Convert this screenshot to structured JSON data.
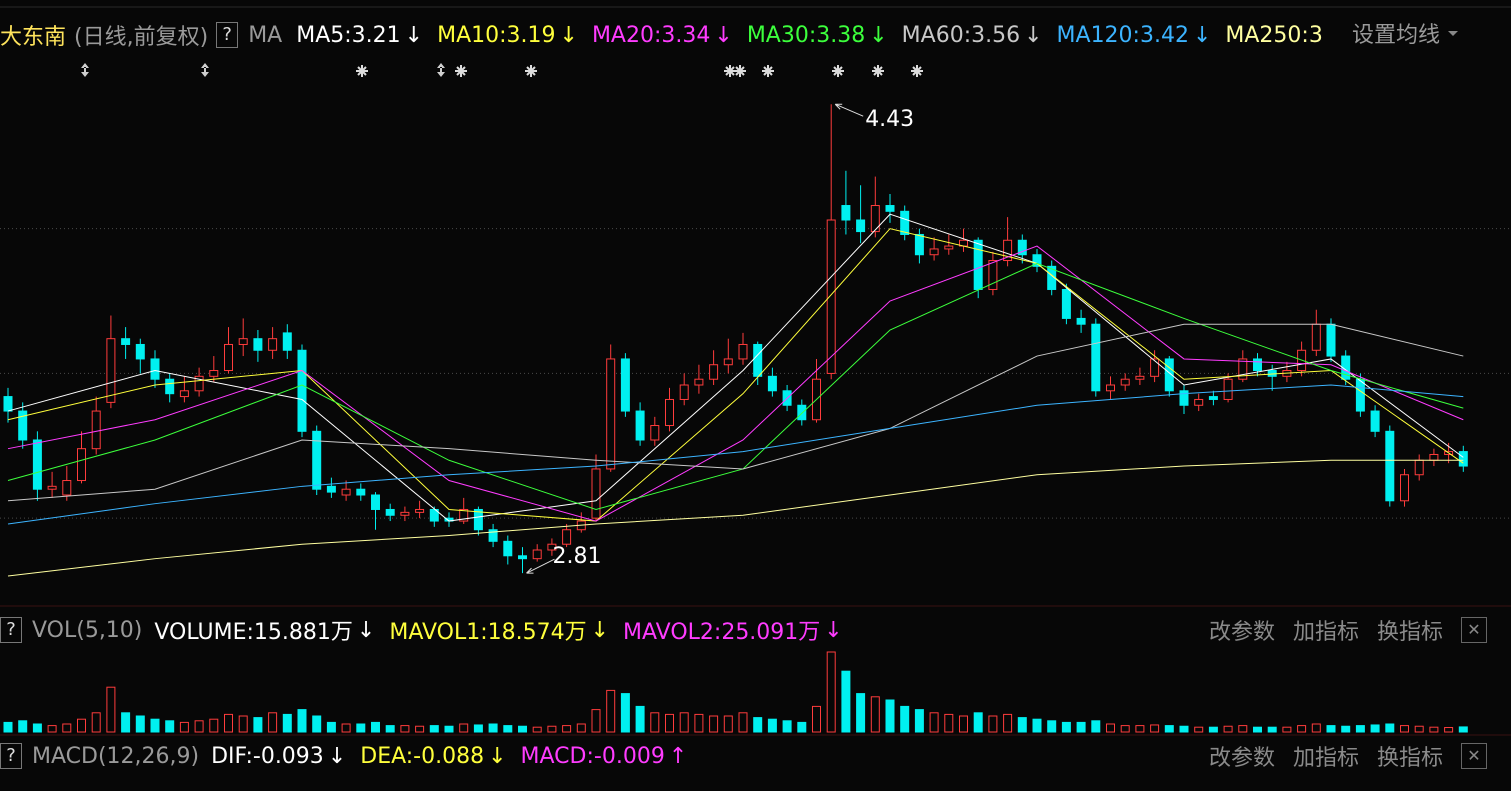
{
  "chart_data": {
    "type": "candlestick",
    "title": "大东南",
    "subtitle": "(日线,前复权)",
    "help": "?",
    "indicator": "MA",
    "settings": "设置均线",
    "ylim": [
      2.7,
      4.6
    ],
    "grid_lines": [
      3,
      3.5,
      4
    ],
    "up_color": "#ff3c3c",
    "down_color": "#00f0f0",
    "ohlc": [
      [
        3.42,
        3.45,
        3.33,
        3.37
      ],
      [
        3.37,
        3.4,
        3.24,
        3.27
      ],
      [
        3.27,
        3.3,
        3.06,
        3.1
      ],
      [
        3.1,
        3.16,
        3.07,
        3.11
      ],
      [
        3.08,
        3.18,
        3.06,
        3.13
      ],
      [
        3.13,
        3.3,
        3.12,
        3.24
      ],
      [
        3.24,
        3.42,
        3.22,
        3.37
      ],
      [
        3.4,
        3.7,
        3.38,
        3.62
      ],
      [
        3.62,
        3.66,
        3.55,
        3.6
      ],
      [
        3.6,
        3.62,
        3.5,
        3.55
      ],
      [
        3.55,
        3.58,
        3.45,
        3.48
      ],
      [
        3.48,
        3.5,
        3.4,
        3.43
      ],
      [
        3.42,
        3.49,
        3.4,
        3.44
      ],
      [
        3.44,
        3.52,
        3.42,
        3.49
      ],
      [
        3.49,
        3.56,
        3.47,
        3.51
      ],
      [
        3.51,
        3.66,
        3.5,
        3.6
      ],
      [
        3.6,
        3.69,
        3.56,
        3.62
      ],
      [
        3.62,
        3.65,
        3.54,
        3.58
      ],
      [
        3.58,
        3.66,
        3.55,
        3.62
      ],
      [
        3.64,
        3.67,
        3.55,
        3.58
      ],
      [
        3.58,
        3.6,
        3.28,
        3.3
      ],
      [
        3.3,
        3.32,
        3.08,
        3.1
      ],
      [
        3.11,
        3.14,
        3.07,
        3.09
      ],
      [
        3.08,
        3.13,
        3.06,
        3.1
      ],
      [
        3.1,
        3.12,
        3.06,
        3.08
      ],
      [
        3.08,
        3.09,
        2.96,
        3.03
      ],
      [
        3.03,
        3.05,
        2.99,
        3.01
      ],
      [
        3.01,
        3.04,
        2.99,
        3.02
      ],
      [
        3.02,
        3.06,
        3.0,
        3.03
      ],
      [
        3.03,
        3.04,
        2.97,
        2.99
      ],
      [
        3.0,
        3.02,
        2.97,
        2.99
      ],
      [
        2.99,
        3.07,
        2.98,
        3.03
      ],
      [
        3.03,
        3.04,
        2.94,
        2.96
      ],
      [
        2.96,
        2.98,
        2.9,
        2.92
      ],
      [
        2.92,
        2.94,
        2.84,
        2.87
      ],
      [
        2.87,
        2.9,
        2.81,
        2.86
      ],
      [
        2.86,
        2.91,
        2.85,
        2.89
      ],
      [
        2.89,
        2.93,
        2.87,
        2.91
      ],
      [
        2.91,
        2.98,
        2.9,
        2.96
      ],
      [
        2.96,
        3.02,
        2.95,
        2.99
      ],
      [
        3.0,
        3.22,
        2.99,
        3.17
      ],
      [
        3.17,
        3.6,
        3.16,
        3.55
      ],
      [
        3.55,
        3.57,
        3.35,
        3.37
      ],
      [
        3.37,
        3.4,
        3.25,
        3.27
      ],
      [
        3.27,
        3.35,
        3.25,
        3.32
      ],
      [
        3.32,
        3.45,
        3.3,
        3.41
      ],
      [
        3.41,
        3.5,
        3.39,
        3.46
      ],
      [
        3.46,
        3.53,
        3.43,
        3.48
      ],
      [
        3.48,
        3.58,
        3.46,
        3.53
      ],
      [
        3.53,
        3.62,
        3.5,
        3.55
      ],
      [
        3.55,
        3.64,
        3.53,
        3.6
      ],
      [
        3.6,
        3.61,
        3.46,
        3.49
      ],
      [
        3.49,
        3.52,
        3.42,
        3.44
      ],
      [
        3.44,
        3.46,
        3.37,
        3.39
      ],
      [
        3.39,
        3.41,
        3.32,
        3.34
      ],
      [
        3.34,
        3.55,
        3.33,
        3.48
      ],
      [
        3.5,
        4.43,
        3.48,
        4.03
      ],
      [
        4.08,
        4.2,
        3.98,
        4.03
      ],
      [
        4.03,
        4.15,
        3.95,
        3.99
      ],
      [
        3.99,
        4.18,
        3.97,
        4.08
      ],
      [
        4.08,
        4.12,
        4.02,
        4.06
      ],
      [
        4.06,
        4.08,
        3.96,
        3.98
      ],
      [
        3.98,
        4.0,
        3.88,
        3.91
      ],
      [
        3.91,
        3.97,
        3.89,
        3.93
      ],
      [
        3.93,
        3.98,
        3.91,
        3.94
      ],
      [
        3.94,
        4.0,
        3.92,
        3.96
      ],
      [
        3.96,
        3.97,
        3.76,
        3.79
      ],
      [
        3.79,
        3.92,
        3.77,
        3.89
      ],
      [
        3.89,
        4.04,
        3.87,
        3.96
      ],
      [
        3.96,
        3.98,
        3.88,
        3.91
      ],
      [
        3.91,
        3.93,
        3.85,
        3.87
      ],
      [
        3.87,
        3.89,
        3.77,
        3.79
      ],
      [
        3.79,
        3.81,
        3.67,
        3.69
      ],
      [
        3.69,
        3.72,
        3.64,
        3.67
      ],
      [
        3.67,
        3.69,
        3.42,
        3.44
      ],
      [
        3.44,
        3.49,
        3.41,
        3.46
      ],
      [
        3.46,
        3.5,
        3.44,
        3.48
      ],
      [
        3.48,
        3.52,
        3.46,
        3.49
      ],
      [
        3.49,
        3.58,
        3.47,
        3.55
      ],
      [
        3.55,
        3.56,
        3.42,
        3.44
      ],
      [
        3.44,
        3.46,
        3.36,
        3.39
      ],
      [
        3.39,
        3.43,
        3.37,
        3.41
      ],
      [
        3.42,
        3.44,
        3.39,
        3.41
      ],
      [
        3.41,
        3.5,
        3.4,
        3.48
      ],
      [
        3.48,
        3.58,
        3.47,
        3.55
      ],
      [
        3.55,
        3.57,
        3.49,
        3.51
      ],
      [
        3.51,
        3.53,
        3.44,
        3.49
      ],
      [
        3.49,
        3.54,
        3.47,
        3.51
      ],
      [
        3.51,
        3.61,
        3.49,
        3.58
      ],
      [
        3.58,
        3.72,
        3.56,
        3.67
      ],
      [
        3.67,
        3.69,
        3.54,
        3.56
      ],
      [
        3.56,
        3.58,
        3.46,
        3.48
      ],
      [
        3.48,
        3.5,
        3.35,
        3.37
      ],
      [
        3.37,
        3.39,
        3.28,
        3.3
      ],
      [
        3.3,
        3.32,
        3.04,
        3.06
      ],
      [
        3.06,
        3.17,
        3.04,
        3.15
      ],
      [
        3.15,
        3.22,
        3.13,
        3.2
      ],
      [
        3.2,
        3.24,
        3.18,
        3.22
      ],
      [
        3.22,
        3.26,
        3.19,
        3.23
      ],
      [
        3.23,
        3.25,
        3.16,
        3.18
      ]
    ],
    "high_label": {
      "value": 4.43,
      "label": "4.43"
    },
    "low_label": {
      "value": 2.81,
      "label": "2.81"
    },
    "series": [
      {
        "name": "MA5:3.21",
        "arrow": "↓",
        "color": "#ffffff",
        "x": [
          0,
          10,
          20,
          30,
          40,
          50,
          60,
          70,
          80,
          90,
          99
        ],
        "values": [
          3.37,
          3.51,
          3.41,
          2.99,
          3.06,
          3.51,
          4.05,
          3.88,
          3.46,
          3.55,
          3.21
        ]
      },
      {
        "name": "MA10:3.19",
        "arrow": "↓",
        "color": "#ffff3c",
        "x": [
          0,
          10,
          20,
          30,
          40,
          50,
          60,
          70,
          80,
          90,
          99
        ],
        "values": [
          3.34,
          3.46,
          3.51,
          3.03,
          2.99,
          3.43,
          4.0,
          3.88,
          3.48,
          3.51,
          3.19
        ]
      },
      {
        "name": "MA20:3.34",
        "arrow": "↓",
        "color": "#ff3cff",
        "x": [
          0,
          10,
          20,
          30,
          40,
          50,
          60,
          70,
          80,
          90,
          99
        ],
        "values": [
          3.24,
          3.34,
          3.51,
          3.13,
          2.99,
          3.27,
          3.75,
          3.94,
          3.55,
          3.53,
          3.34
        ]
      },
      {
        "name": "MA30:3.38",
        "arrow": "↓",
        "color": "#3cff3c",
        "x": [
          0,
          10,
          20,
          30,
          40,
          50,
          60,
          70,
          80,
          90,
          99
        ],
        "values": [
          3.13,
          3.27,
          3.46,
          3.2,
          3.03,
          3.17,
          3.65,
          3.88,
          3.69,
          3.51,
          3.38
        ]
      },
      {
        "name": "MA60:3.56",
        "arrow": "↓",
        "color": "#c8c8c8",
        "x": [
          0,
          10,
          20,
          30,
          40,
          50,
          60,
          70,
          80,
          90,
          99
        ],
        "values": [
          3.06,
          3.1,
          3.27,
          3.24,
          3.2,
          3.17,
          3.31,
          3.56,
          3.67,
          3.67,
          3.56
        ]
      },
      {
        "name": "MA120:3.42",
        "arrow": "↓",
        "color": "#3cb4ff",
        "x": [
          0,
          10,
          20,
          30,
          40,
          50,
          60,
          70,
          80,
          90,
          99
        ],
        "values": [
          2.98,
          3.05,
          3.11,
          3.15,
          3.18,
          3.23,
          3.31,
          3.39,
          3.43,
          3.46,
          3.42
        ]
      },
      {
        "name": "MA250:3",
        "arrow": "",
        "color": "#ffffa0",
        "x": [
          0,
          10,
          20,
          30,
          40,
          50,
          60,
          70,
          80,
          90,
          99
        ],
        "values": [
          2.8,
          2.86,
          2.91,
          2.94,
          2.98,
          3.01,
          3.08,
          3.15,
          3.18,
          3.2,
          3.2
        ]
      }
    ],
    "volume": {
      "type": "bar",
      "help": "?",
      "title": "VOL(5,10)",
      "ylim": [
        0,
        250
      ],
      "legend": [
        {
          "text": "VOLUME:15.881万",
          "arrow": "↓",
          "color": "#ffffff"
        },
        {
          "text": "MAVOL1:18.574万",
          "arrow": "↓",
          "color": "#ffff3c"
        },
        {
          "text": "MAVOL2:25.091万",
          "arrow": "↓",
          "color": "#ff3cff"
        }
      ],
      "buttons": [
        "改参数",
        "加指标",
        "换指标"
      ],
      "close": "✕",
      "values": [
        30,
        35,
        25,
        20,
        25,
        40,
        60,
        140,
        60,
        50,
        40,
        35,
        30,
        35,
        40,
        55,
        50,
        45,
        60,
        55,
        70,
        50,
        30,
        25,
        25,
        30,
        20,
        20,
        18,
        20,
        18,
        25,
        22,
        25,
        20,
        18,
        15,
        18,
        20,
        25,
        70,
        130,
        120,
        80,
        60,
        55,
        60,
        55,
        50,
        50,
        60,
        45,
        40,
        35,
        30,
        80,
        250,
        190,
        120,
        110,
        100,
        80,
        70,
        60,
        55,
        50,
        60,
        50,
        55,
        45,
        40,
        35,
        30,
        30,
        35,
        25,
        20,
        20,
        22,
        20,
        18,
        15,
        15,
        18,
        20,
        15,
        15,
        15,
        20,
        25,
        20,
        18,
        20,
        22,
        25,
        20,
        18,
        15,
        14,
        15.881
      ]
    },
    "macd": {
      "help": "?",
      "title": "MACD(12,26,9)",
      "legend": [
        {
          "text": "DIF:-0.093",
          "arrow": "↓",
          "color": "#ffffff"
        },
        {
          "text": "DEA:-0.088",
          "arrow": "↓",
          "color": "#ffff3c"
        },
        {
          "text": "MACD:-0.009",
          "arrow": "↑",
          "color": "#ff3cff"
        }
      ],
      "buttons": [
        "改参数",
        "加指标",
        "换指标"
      ],
      "close": "✕"
    }
  }
}
